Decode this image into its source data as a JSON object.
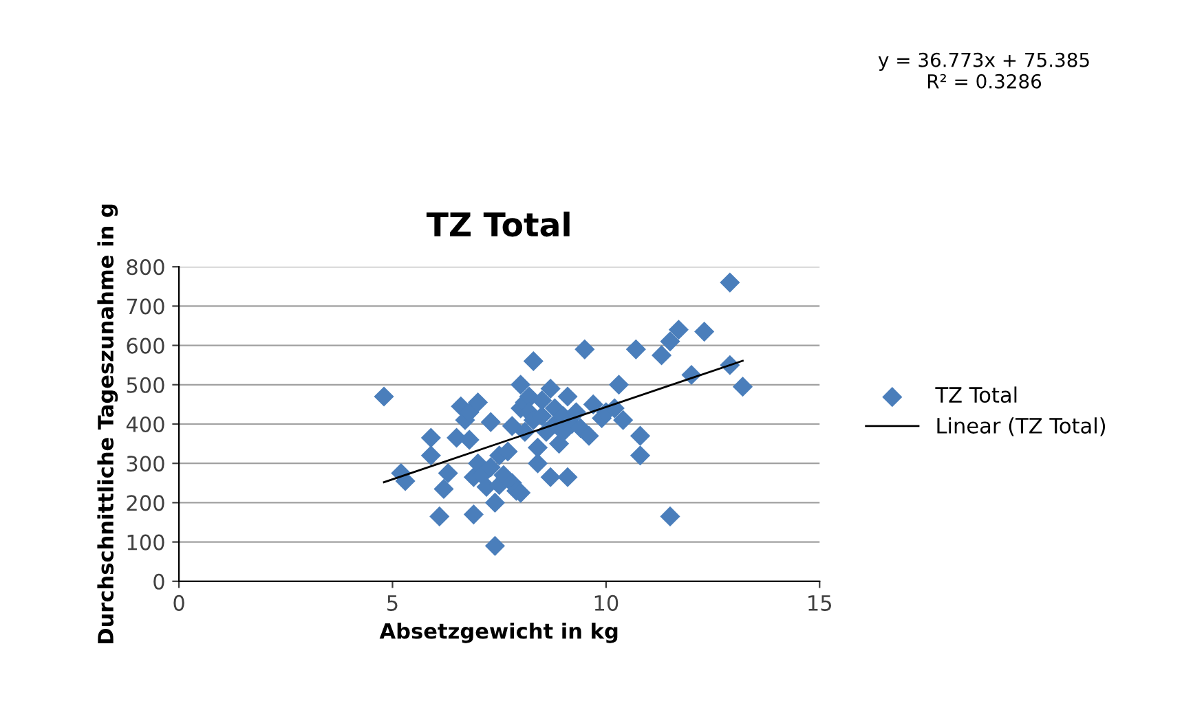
{
  "chart_data": {
    "type": "scatter",
    "title": "TZ Total",
    "xlabel": "Absetzgewicht in kg",
    "ylabel": "Durchschnittliche Tageszunahme in g",
    "annotations": [
      "y = 36.773x + 75.385\nR² = 0.3286"
    ],
    "xlim": [
      0,
      15
    ],
    "xticks": [
      0,
      5,
      10,
      15
    ],
    "ylim": [
      0,
      800
    ],
    "yticks": [
      0,
      100,
      200,
      300,
      400,
      500,
      600,
      700,
      800
    ],
    "grid": "y",
    "legend": "right",
    "marker": "diamond",
    "series": [
      {
        "name": "TZ Total",
        "color": "#4a7ebb",
        "x": [
          4.8,
          5.2,
          5.3,
          5.9,
          5.9,
          6.1,
          6.2,
          6.3,
          6.5,
          6.6,
          6.7,
          6.8,
          6.8,
          6.9,
          6.9,
          7.0,
          7.0,
          7.1,
          7.2,
          7.3,
          7.3,
          7.4,
          7.4,
          7.5,
          7.5,
          7.6,
          7.7,
          7.8,
          7.8,
          7.9,
          8.0,
          8.0,
          8.0,
          8.1,
          8.1,
          8.2,
          8.2,
          8.3,
          8.3,
          8.4,
          8.4,
          8.5,
          8.5,
          8.6,
          8.7,
          8.7,
          8.8,
          8.8,
          8.9,
          9.0,
          9.0,
          9.1,
          9.1,
          9.2,
          9.3,
          9.4,
          9.5,
          9.6,
          9.7,
          9.9,
          10.0,
          10.2,
          10.3,
          10.4,
          10.7,
          10.8,
          10.8,
          11.3,
          11.5,
          11.5,
          11.7,
          12.0,
          12.3,
          12.9,
          12.9,
          13.2
        ],
        "values": [
          470,
          275,
          255,
          365,
          320,
          165,
          235,
          275,
          365,
          445,
          410,
          430,
          360,
          170,
          265,
          455,
          300,
          270,
          240,
          405,
          290,
          200,
          90,
          245,
          320,
          270,
          330,
          250,
          395,
          230,
          225,
          440,
          500,
          455,
          380,
          470,
          430,
          560,
          410,
          340,
          300,
          420,
          460,
          380,
          265,
          490,
          440,
          400,
          350,
          420,
          380,
          265,
          470,
          400,
          430,
          390,
          590,
          370,
          450,
          415,
          430,
          440,
          500,
          410,
          590,
          370,
          320,
          575,
          610,
          165,
          640,
          525,
          635,
          760,
          550,
          495
        ]
      },
      {
        "name": "Linear (TZ Total)",
        "type": "line",
        "color": "#000000",
        "marker": "none",
        "x": [
          4.8,
          13.2
        ],
        "values": [
          252,
          561
        ]
      }
    ]
  }
}
